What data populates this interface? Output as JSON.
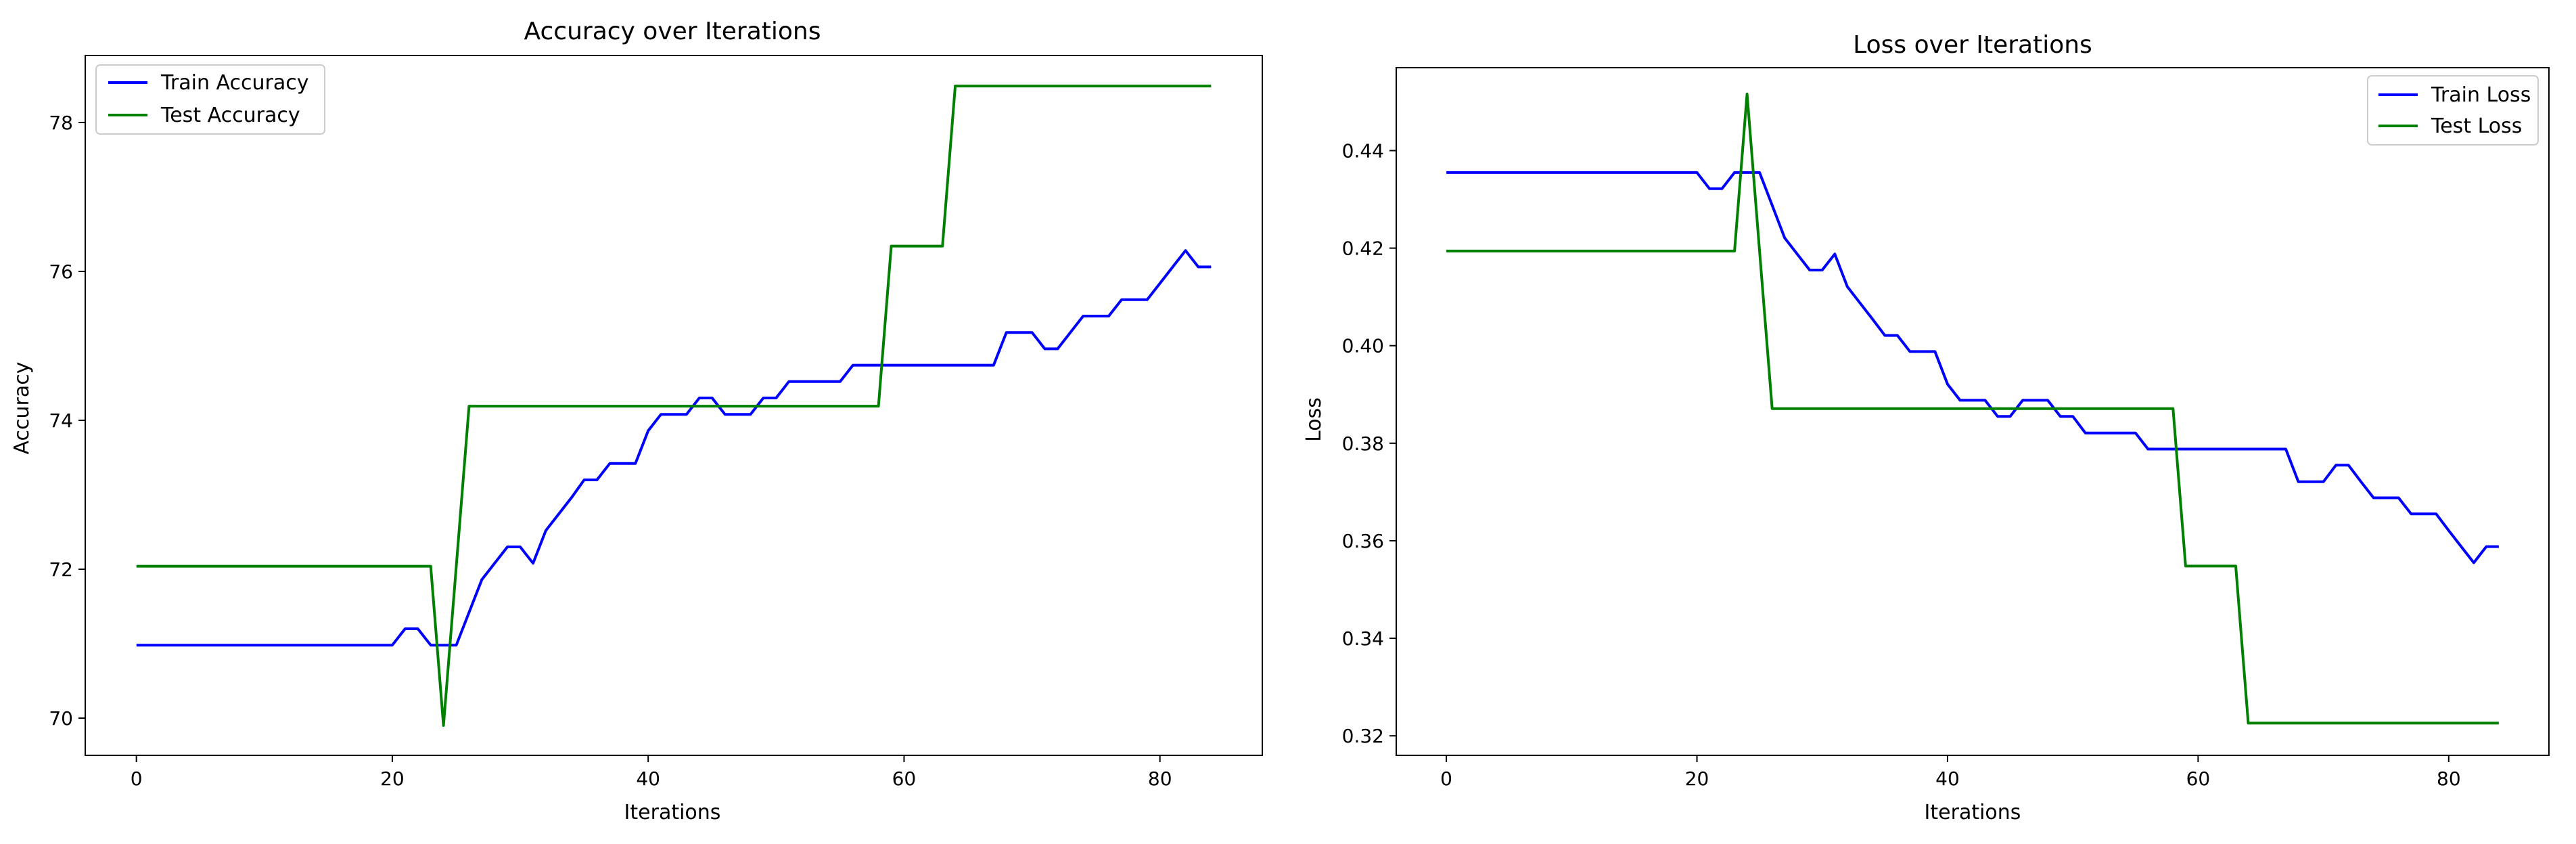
{
  "chart_data": [
    {
      "type": "line",
      "title": "Accuracy over Iterations",
      "xlabel": "Iterations",
      "ylabel": "Accuracy",
      "xlim": [
        -4,
        88
      ],
      "ylim": [
        69.5,
        78.9
      ],
      "xticks": [
        0,
        20,
        40,
        60,
        80
      ],
      "yticks": [
        70,
        72,
        74,
        76,
        78
      ],
      "grid": false,
      "legend_position": "top-left",
      "series": [
        {
          "name": "Train Accuracy",
          "color": "#0000ff",
          "x": [
            0,
            1,
            2,
            3,
            4,
            5,
            6,
            7,
            8,
            9,
            10,
            11,
            12,
            13,
            14,
            15,
            16,
            17,
            18,
            19,
            20,
            21,
            22,
            23,
            24,
            25,
            26,
            27,
            28,
            29,
            30,
            31,
            32,
            33,
            34,
            35,
            36,
            37,
            38,
            39,
            40,
            41,
            42,
            43,
            44,
            45,
            46,
            47,
            48,
            49,
            50,
            51,
            52,
            53,
            54,
            55,
            56,
            57,
            58,
            59,
            60,
            61,
            62,
            63,
            64,
            65,
            66,
            67,
            68,
            69,
            70,
            71,
            72,
            73,
            74,
            75,
            76,
            77,
            78,
            79,
            80,
            81,
            82,
            83,
            84
          ],
          "values": [
            70.98,
            70.98,
            70.98,
            70.98,
            70.98,
            70.98,
            70.98,
            70.98,
            70.98,
            70.98,
            70.98,
            70.98,
            70.98,
            70.98,
            70.98,
            70.98,
            70.98,
            70.98,
            70.98,
            70.98,
            70.98,
            71.2,
            71.2,
            70.98,
            70.98,
            70.98,
            71.42,
            71.86,
            72.08,
            72.3,
            72.3,
            72.08,
            72.52,
            72.74,
            72.96,
            73.2,
            73.2,
            73.42,
            73.42,
            73.42,
            73.86,
            74.08,
            74.08,
            74.08,
            74.3,
            74.3,
            74.08,
            74.08,
            74.08,
            74.3,
            74.3,
            74.52,
            74.52,
            74.52,
            74.52,
            74.52,
            74.74,
            74.74,
            74.74,
            74.74,
            74.74,
            74.74,
            74.74,
            74.74,
            74.74,
            74.74,
            74.74,
            74.74,
            75.18,
            75.18,
            75.18,
            74.96,
            74.96,
            75.18,
            75.4,
            75.4,
            75.4,
            75.62,
            75.62,
            75.62,
            75.84,
            76.06,
            76.28,
            76.06,
            76.06
          ]
        },
        {
          "name": "Test Accuracy",
          "color": "#008000",
          "x": [
            0,
            1,
            2,
            3,
            4,
            5,
            6,
            7,
            8,
            9,
            10,
            11,
            12,
            13,
            14,
            15,
            16,
            17,
            18,
            19,
            20,
            21,
            22,
            23,
            24,
            25,
            26,
            27,
            28,
            29,
            30,
            31,
            32,
            33,
            34,
            35,
            36,
            37,
            38,
            39,
            40,
            41,
            42,
            43,
            44,
            45,
            46,
            47,
            48,
            49,
            50,
            51,
            52,
            53,
            54,
            55,
            56,
            57,
            58,
            59,
            60,
            61,
            62,
            63,
            64,
            65,
            66,
            67,
            68,
            69,
            70,
            71,
            72,
            73,
            74,
            75,
            76,
            77,
            78,
            79,
            80,
            81,
            82,
            83,
            84
          ],
          "values": [
            72.04,
            72.04,
            72.04,
            72.04,
            72.04,
            72.04,
            72.04,
            72.04,
            72.04,
            72.04,
            72.04,
            72.04,
            72.04,
            72.04,
            72.04,
            72.04,
            72.04,
            72.04,
            72.04,
            72.04,
            72.04,
            72.04,
            72.04,
            72.04,
            69.9,
            72.04,
            74.19,
            74.19,
            74.19,
            74.19,
            74.19,
            74.19,
            74.19,
            74.19,
            74.19,
            74.19,
            74.19,
            74.19,
            74.19,
            74.19,
            74.19,
            74.19,
            74.19,
            74.19,
            74.19,
            74.19,
            74.19,
            74.19,
            74.19,
            74.19,
            74.19,
            74.19,
            74.19,
            74.19,
            74.19,
            74.19,
            74.19,
            74.19,
            74.19,
            76.34,
            76.34,
            76.34,
            76.34,
            76.34,
            78.49,
            78.49,
            78.49,
            78.49,
            78.49,
            78.49,
            78.49,
            78.49,
            78.49,
            78.49,
            78.49,
            78.49,
            78.49,
            78.49,
            78.49,
            78.49,
            78.49,
            78.49,
            78.49,
            78.49,
            78.49
          ]
        }
      ]
    },
    {
      "type": "line",
      "title": "Loss over Iterations",
      "xlabel": "Iterations",
      "ylabel": "Loss",
      "xlim": [
        -4,
        88
      ],
      "ylim": [
        0.316,
        0.457
      ],
      "xticks": [
        0,
        20,
        40,
        60,
        80
      ],
      "yticks": [
        0.32,
        0.34,
        0.36,
        0.38,
        0.4,
        0.42,
        0.44
      ],
      "ytick_labels": [
        "0.32",
        "0.34",
        "0.36",
        "0.38",
        "0.40",
        "0.42",
        "0.44"
      ],
      "grid": false,
      "legend_position": "top-right",
      "series": [
        {
          "name": "Train Loss",
          "color": "#0000ff",
          "x": [
            0,
            1,
            2,
            3,
            4,
            5,
            6,
            7,
            8,
            9,
            10,
            11,
            12,
            13,
            14,
            15,
            16,
            17,
            18,
            19,
            20,
            21,
            22,
            23,
            24,
            25,
            26,
            27,
            28,
            29,
            30,
            31,
            32,
            33,
            34,
            35,
            36,
            37,
            38,
            39,
            40,
            41,
            42,
            43,
            44,
            45,
            46,
            47,
            48,
            49,
            50,
            51,
            52,
            53,
            54,
            55,
            56,
            57,
            58,
            59,
            60,
            61,
            62,
            63,
            64,
            65,
            66,
            67,
            68,
            69,
            70,
            71,
            72,
            73,
            74,
            75,
            76,
            77,
            78,
            79,
            80,
            81,
            82,
            83,
            84
          ],
          "values": [
            0.4355,
            0.4355,
            0.4355,
            0.4355,
            0.4355,
            0.4355,
            0.4355,
            0.4355,
            0.4355,
            0.4355,
            0.4355,
            0.4355,
            0.4355,
            0.4355,
            0.4355,
            0.4355,
            0.4355,
            0.4355,
            0.4355,
            0.4355,
            0.4355,
            0.4322,
            0.4322,
            0.4355,
            0.4355,
            0.4355,
            0.4288,
            0.4221,
            0.4188,
            0.4155,
            0.4155,
            0.4188,
            0.4121,
            0.4088,
            0.4055,
            0.4021,
            0.4021,
            0.3988,
            0.3988,
            0.3988,
            0.3921,
            0.3888,
            0.3888,
            0.3888,
            0.3855,
            0.3855,
            0.3888,
            0.3888,
            0.3888,
            0.3855,
            0.3855,
            0.3821,
            0.3821,
            0.3821,
            0.3821,
            0.3821,
            0.3788,
            0.3788,
            0.3788,
            0.3788,
            0.3788,
            0.3788,
            0.3788,
            0.3788,
            0.3788,
            0.3788,
            0.3788,
            0.3788,
            0.3721,
            0.3721,
            0.3721,
            0.3755,
            0.3755,
            0.3721,
            0.3688,
            0.3688,
            0.3688,
            0.3655,
            0.3655,
            0.3655,
            0.3621,
            0.3588,
            0.3555,
            0.3588,
            0.3588
          ]
        },
        {
          "name": "Test Loss",
          "color": "#008000",
          "x": [
            0,
            1,
            2,
            3,
            4,
            5,
            6,
            7,
            8,
            9,
            10,
            11,
            12,
            13,
            14,
            15,
            16,
            17,
            18,
            19,
            20,
            21,
            22,
            23,
            24,
            25,
            26,
            27,
            28,
            29,
            30,
            31,
            32,
            33,
            34,
            35,
            36,
            37,
            38,
            39,
            40,
            41,
            42,
            43,
            44,
            45,
            46,
            47,
            48,
            49,
            50,
            51,
            52,
            53,
            54,
            55,
            56,
            57,
            58,
            59,
            60,
            61,
            62,
            63,
            64,
            65,
            66,
            67,
            68,
            69,
            70,
            71,
            72,
            73,
            74,
            75,
            76,
            77,
            78,
            79,
            80,
            81,
            82,
            83,
            84
          ],
          "values": [
            0.4194,
            0.4194,
            0.4194,
            0.4194,
            0.4194,
            0.4194,
            0.4194,
            0.4194,
            0.4194,
            0.4194,
            0.4194,
            0.4194,
            0.4194,
            0.4194,
            0.4194,
            0.4194,
            0.4194,
            0.4194,
            0.4194,
            0.4194,
            0.4194,
            0.4194,
            0.4194,
            0.4194,
            0.4516,
            0.4194,
            0.3871,
            0.3871,
            0.3871,
            0.3871,
            0.3871,
            0.3871,
            0.3871,
            0.3871,
            0.3871,
            0.3871,
            0.3871,
            0.3871,
            0.3871,
            0.3871,
            0.3871,
            0.3871,
            0.3871,
            0.3871,
            0.3871,
            0.3871,
            0.3871,
            0.3871,
            0.3871,
            0.3871,
            0.3871,
            0.3871,
            0.3871,
            0.3871,
            0.3871,
            0.3871,
            0.3871,
            0.3871,
            0.3871,
            0.3548,
            0.3548,
            0.3548,
            0.3548,
            0.3548,
            0.3226,
            0.3226,
            0.3226,
            0.3226,
            0.3226,
            0.3226,
            0.3226,
            0.3226,
            0.3226,
            0.3226,
            0.3226,
            0.3226,
            0.3226,
            0.3226,
            0.3226,
            0.3226,
            0.3226,
            0.3226,
            0.3226,
            0.3226,
            0.3226
          ]
        }
      ]
    }
  ]
}
